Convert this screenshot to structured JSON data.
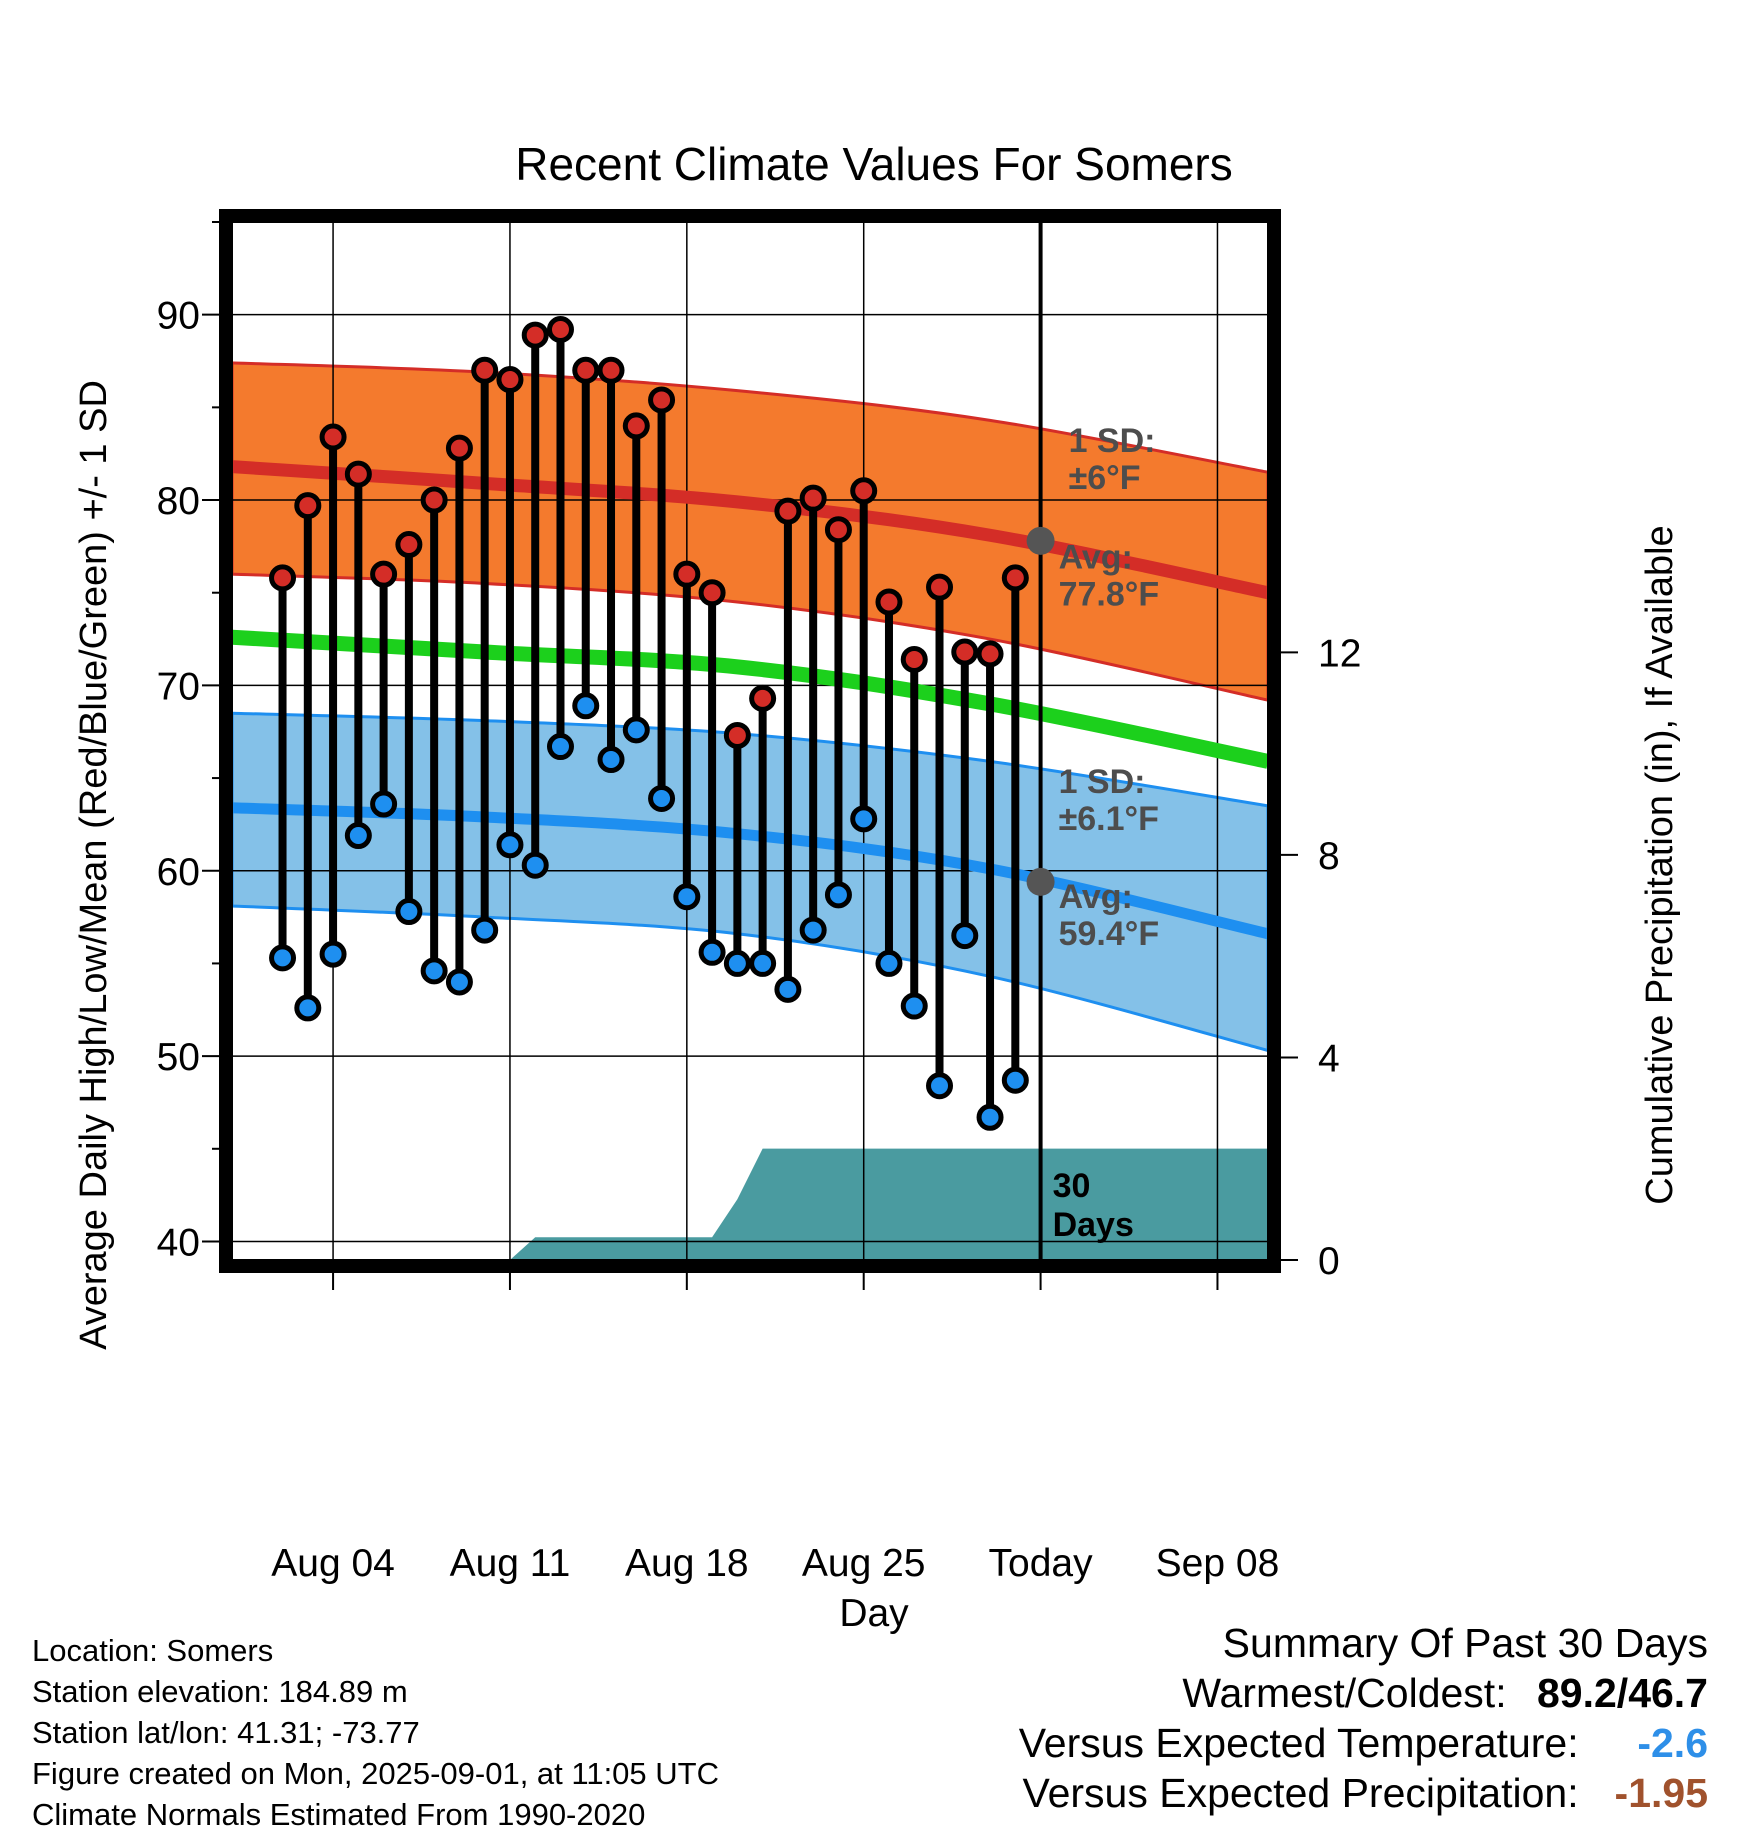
{
  "chart_data": {
    "type": "line",
    "title": "Recent Climate Values For Somers",
    "xlabel": "Day",
    "ylabel": "Average Daily High/Low/Mean (Red/Blue/Green) +/- 1 SD",
    "ylabel_right": "Cumulative Precipitation (in), If Available",
    "x_ticks": [
      "Aug 04",
      "Aug 11",
      "Aug 18",
      "Aug 25",
      "Today",
      "Sep 08"
    ],
    "y_ticks": [
      40,
      50,
      60,
      70,
      80,
      90
    ],
    "y2_ticks": [
      0,
      4,
      8,
      12
    ],
    "ylim": [
      39,
      95
    ],
    "y2lim": [
      0,
      20.5
    ],
    "xlim": [
      "Jul 31",
      "Sep 10"
    ],
    "grid": true,
    "today": "Sep 01",
    "days": [
      "Aug 02",
      "Aug 03",
      "Aug 04",
      "Aug 05",
      "Aug 06",
      "Aug 07",
      "Aug 08",
      "Aug 09",
      "Aug 10",
      "Aug 11",
      "Aug 12",
      "Aug 13",
      "Aug 14",
      "Aug 15",
      "Aug 16",
      "Aug 17",
      "Aug 18",
      "Aug 19",
      "Aug 20",
      "Aug 21",
      "Aug 22",
      "Aug 23",
      "Aug 24",
      "Aug 25",
      "Aug 26",
      "Aug 27",
      "Aug 28",
      "Aug 29",
      "Aug 30",
      "Aug 31"
    ],
    "observed_high": [
      75.8,
      79.7,
      83.4,
      81.4,
      76.0,
      77.6,
      80.0,
      82.8,
      87.0,
      86.5,
      88.9,
      89.2,
      87.0,
      87.0,
      84.0,
      85.4,
      76.0,
      75.0,
      67.3,
      69.3,
      79.4,
      80.1,
      78.4,
      80.5,
      74.5,
      71.4,
      75.3,
      71.8,
      71.7,
      75.8
    ],
    "observed_low": [
      55.3,
      52.6,
      55.5,
      61.9,
      63.6,
      57.8,
      54.6,
      54.0,
      56.8,
      61.4,
      60.3,
      66.7,
      68.9,
      66.0,
      67.6,
      63.9,
      58.6,
      55.6,
      55.0,
      55.0,
      53.6,
      56.8,
      58.7,
      62.8,
      55.0,
      52.7,
      48.4,
      56.5,
      46.7,
      48.7
    ],
    "normal_high": {
      "x": [
        "Jul 31",
        "Aug 10",
        "Aug 20",
        "Aug 30",
        "Sep 10"
      ],
      "values": [
        81.8,
        80.9,
        79.9,
        78.1,
        75.0
      ]
    },
    "normal_high_sd_band": {
      "lower": [
        76.0,
        75.5,
        74.5,
        72.5,
        69.2
      ],
      "upper": [
        87.4,
        86.9,
        85.9,
        84.3,
        81.5
      ]
    },
    "normal_low": {
      "x": [
        "Jul 31",
        "Aug 10",
        "Aug 20",
        "Aug 30",
        "Sep 10"
      ],
      "values": [
        63.4,
        62.9,
        62.0,
        60.1,
        56.6
      ]
    },
    "normal_low_sd_band": {
      "lower": [
        58.1,
        57.5,
        56.6,
        54.3,
        50.3
      ],
      "upper": [
        68.5,
        68.1,
        67.4,
        65.9,
        63.5
      ]
    },
    "normal_mean": {
      "x": [
        "Jul 31",
        "Aug 10",
        "Aug 20",
        "Aug 30",
        "Sep 10"
      ],
      "values": [
        72.6,
        71.8,
        71.0,
        69.0,
        65.9
      ]
    },
    "precip": {
      "x": [
        "Jul 31",
        "Aug 10",
        "Aug 11",
        "Aug 12",
        "Aug 19",
        "Aug 20",
        "Aug 21",
        "Aug 31",
        "Sep 10"
      ],
      "values": [
        0,
        0,
        0,
        0.45,
        0.45,
        1.2,
        2.2,
        2.2,
        2.2
      ]
    },
    "annotations": {
      "high_sd_label": "1 SD:",
      "high_sd_value": "±6°F",
      "high_avg_label": "Avg:",
      "high_avg_value": "77.8°F",
      "low_sd_label": "1 SD:",
      "low_sd_value": "±6.1°F",
      "low_avg_label": "Avg:",
      "low_avg_value": "59.4°F",
      "today_high_avg": 77.8,
      "today_low_avg": 59.4,
      "days_count": "30",
      "days_word": "Days"
    },
    "colors": {
      "high_band": "#f47a2d",
      "high_line": "#d42d27",
      "low_band": "#84c1e8",
      "low_line": "#1e8ff0",
      "mean_line": "#1cd01c",
      "precip_fill": "#4a9ba0",
      "high_dot": "#d42d27",
      "low_dot": "#1e8ff0",
      "annotation_text": "#4d4d4d"
    }
  },
  "info": {
    "location": "Location: Somers",
    "elevation": "Station elevation: 184.89 m",
    "latlon": "Station lat/lon: 41.31; -73.77",
    "created": "Figure created on Mon, 2025-09-01, at 11:05 UTC",
    "normals": "Climate Normals Estimated From 1990-2020"
  },
  "summary": {
    "heading": "Summary Of Past 30 Days",
    "warm_cold_label": "Warmest/Coldest:",
    "warm_cold_value": "89.2/46.7",
    "temp_label": "Versus Expected Temperature:",
    "temp_value": "-2.6",
    "temp_color": "#2e8fe8",
    "precip_label": "Versus Expected Precipitation:",
    "precip_value": "-1.95",
    "precip_color": "#a0522d"
  }
}
